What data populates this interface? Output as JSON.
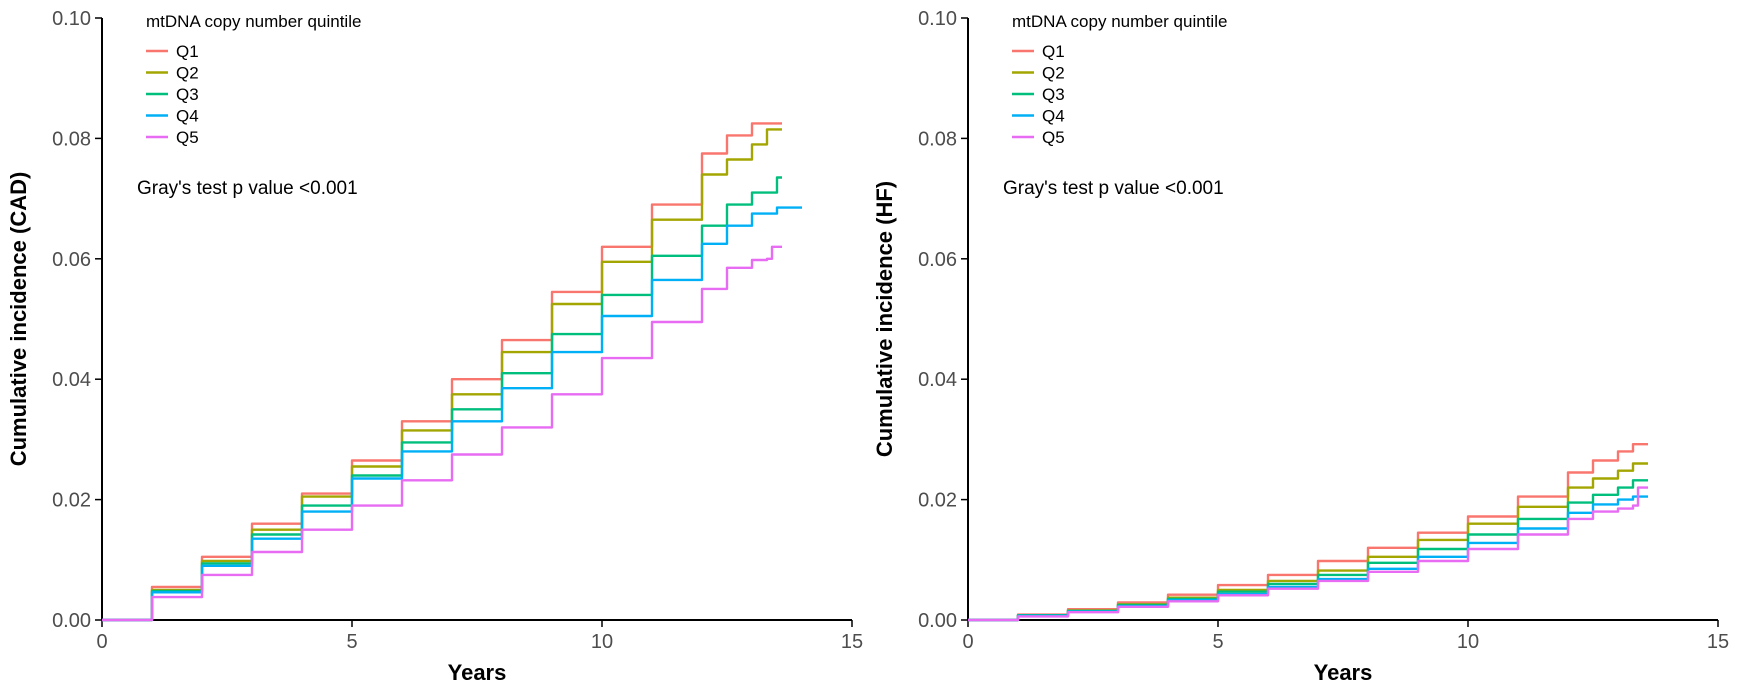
{
  "colors": {
    "Q1": "#F8766D",
    "Q2": "#A3A500",
    "Q3": "#00BF7D",
    "Q4": "#00B0F6",
    "Q5": "#E76BF3"
  },
  "chart_data": [
    {
      "type": "line",
      "id": "cad",
      "xlabel": "Years",
      "ylabel": "Cumulative incidence (CAD)",
      "xlim": [
        0,
        15
      ],
      "ylim": [
        0,
        0.1
      ],
      "xticks": [
        0,
        5,
        10,
        15
      ],
      "xtick_labels": [
        "0",
        "5",
        "10",
        "15"
      ],
      "yticks": [
        0,
        0.02,
        0.04,
        0.06,
        0.08,
        0.1
      ],
      "ytick_labels": [
        "0.00",
        "0.02",
        "0.04",
        "0.06",
        "0.08",
        "0.10"
      ],
      "grid": false,
      "legend": {
        "title": "mtDNA copy number quintile",
        "position": "top-left",
        "entries": [
          "Q1",
          "Q2",
          "Q3",
          "Q4",
          "Q5"
        ]
      },
      "annotation": "Gray's test p value <0.001",
      "series": [
        {
          "name": "Q1",
          "x": [
            0,
            1,
            2,
            3,
            4,
            5,
            6,
            7,
            8,
            9,
            10,
            11,
            12,
            12.5,
            13,
            13.6
          ],
          "y": [
            0,
            0.0055,
            0.0105,
            0.016,
            0.021,
            0.0265,
            0.033,
            0.04,
            0.0465,
            0.0545,
            0.062,
            0.069,
            0.0775,
            0.0805,
            0.0825,
            0.0825
          ]
        },
        {
          "name": "Q2",
          "x": [
            0,
            1,
            2,
            3,
            4,
            5,
            6,
            7,
            8,
            9,
            10,
            11,
            12,
            12.5,
            13,
            13.3,
            13.6
          ],
          "y": [
            0,
            0.005,
            0.0098,
            0.015,
            0.0205,
            0.0255,
            0.0315,
            0.0375,
            0.0445,
            0.0525,
            0.0595,
            0.0665,
            0.074,
            0.0765,
            0.079,
            0.0815,
            0.0815
          ]
        },
        {
          "name": "Q3",
          "x": [
            0,
            1,
            2,
            3,
            4,
            5,
            6,
            7,
            8,
            9,
            10,
            11,
            12,
            12.5,
            13,
            13.4,
            13.5,
            13.6
          ],
          "y": [
            0,
            0.0048,
            0.0094,
            0.0142,
            0.019,
            0.024,
            0.0295,
            0.035,
            0.041,
            0.0475,
            0.054,
            0.0605,
            0.0655,
            0.069,
            0.071,
            0.071,
            0.0735,
            0.0735
          ]
        },
        {
          "name": "Q4",
          "x": [
            0,
            1,
            2,
            3,
            4,
            5,
            6,
            7,
            8,
            9,
            10,
            11,
            12,
            12.5,
            13,
            13.5,
            14
          ],
          "y": [
            0,
            0.0046,
            0.009,
            0.0135,
            0.018,
            0.0235,
            0.028,
            0.033,
            0.0385,
            0.0445,
            0.0505,
            0.0565,
            0.0625,
            0.0655,
            0.0675,
            0.0685,
            0.0685
          ]
        },
        {
          "name": "Q5",
          "x": [
            0,
            1,
            2,
            3,
            4,
            5,
            6,
            7,
            8,
            9,
            10,
            11,
            12,
            12.5,
            13,
            13.3,
            13.4,
            13.6
          ],
          "y": [
            0,
            0.0038,
            0.0075,
            0.0113,
            0.015,
            0.019,
            0.0232,
            0.0275,
            0.032,
            0.0375,
            0.0435,
            0.0495,
            0.055,
            0.0585,
            0.0598,
            0.06,
            0.062,
            0.062
          ]
        }
      ]
    },
    {
      "type": "line",
      "id": "hf",
      "xlabel": "Years",
      "ylabel": "Cumulative incidence (HF)",
      "xlim": [
        0,
        15
      ],
      "ylim": [
        0,
        0.1
      ],
      "xticks": [
        0,
        5,
        10,
        15
      ],
      "xtick_labels": [
        "0",
        "5",
        "10",
        "15"
      ],
      "yticks": [
        0,
        0.02,
        0.04,
        0.06,
        0.08,
        0.1
      ],
      "ytick_labels": [
        "0.00",
        "0.02",
        "0.04",
        "0.06",
        "0.08",
        "0.10"
      ],
      "grid": false,
      "legend": {
        "title": "mtDNA copy number quintile",
        "position": "top-left",
        "entries": [
          "Q1",
          "Q2",
          "Q3",
          "Q4",
          "Q5"
        ]
      },
      "annotation": "Gray's test p value <0.001",
      "series": [
        {
          "name": "Q1",
          "x": [
            0,
            1,
            2,
            3,
            4,
            5,
            6,
            7,
            8,
            9,
            10,
            11,
            12,
            12.5,
            13,
            13.3,
            13.6
          ],
          "y": [
            0,
            0.0009,
            0.0018,
            0.0029,
            0.0042,
            0.0058,
            0.0075,
            0.0098,
            0.012,
            0.0145,
            0.0172,
            0.0205,
            0.0245,
            0.0265,
            0.028,
            0.0292,
            0.0292
          ]
        },
        {
          "name": "Q2",
          "x": [
            0,
            1,
            2,
            3,
            4,
            5,
            6,
            7,
            8,
            9,
            10,
            11,
            12,
            12.5,
            13,
            13.3,
            13.6
          ],
          "y": [
            0,
            0.0008,
            0.0016,
            0.0026,
            0.0037,
            0.005,
            0.0065,
            0.0082,
            0.0105,
            0.0133,
            0.016,
            0.0188,
            0.022,
            0.0235,
            0.0248,
            0.026,
            0.026
          ]
        },
        {
          "name": "Q3",
          "x": [
            0,
            1,
            2,
            3,
            4,
            5,
            6,
            7,
            8,
            9,
            10,
            11,
            12,
            12.5,
            13,
            13.3,
            13.6
          ],
          "y": [
            0,
            0.0008,
            0.0015,
            0.0025,
            0.0035,
            0.0047,
            0.006,
            0.0075,
            0.0095,
            0.0118,
            0.0142,
            0.0168,
            0.0195,
            0.0208,
            0.022,
            0.0232,
            0.0232
          ]
        },
        {
          "name": "Q4",
          "x": [
            0,
            1,
            2,
            3,
            4,
            5,
            6,
            7,
            8,
            9,
            10,
            11,
            12,
            12.5,
            13,
            13.3,
            13.6
          ],
          "y": [
            0,
            0.0007,
            0.0014,
            0.0023,
            0.0033,
            0.0043,
            0.0055,
            0.0068,
            0.0085,
            0.0105,
            0.0128,
            0.0152,
            0.0178,
            0.0192,
            0.02,
            0.0205,
            0.0205
          ]
        },
        {
          "name": "Q5",
          "x": [
            0,
            1,
            2,
            3,
            4,
            5,
            6,
            7,
            8,
            9,
            10,
            11,
            12,
            12.5,
            13,
            13.3,
            13.4,
            13.6
          ],
          "y": [
            0,
            0.0006,
            0.0013,
            0.0022,
            0.0031,
            0.0041,
            0.0052,
            0.0065,
            0.008,
            0.0098,
            0.0118,
            0.0142,
            0.0168,
            0.018,
            0.0185,
            0.019,
            0.022,
            0.022
          ]
        }
      ]
    }
  ]
}
